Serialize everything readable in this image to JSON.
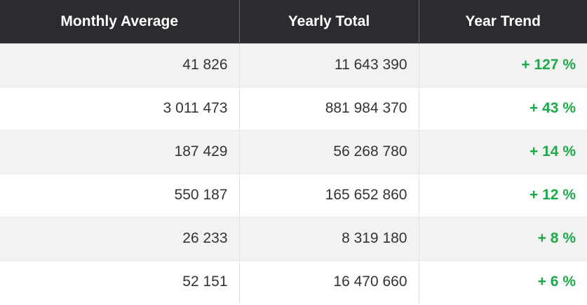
{
  "table": {
    "headers": [
      "Monthly Average",
      "Yearly Total",
      "Year Trend"
    ],
    "rows": [
      {
        "monthly_average": "41 826",
        "yearly_total": "11 643 390",
        "year_trend": "+ 127 %"
      },
      {
        "monthly_average": "3 011 473",
        "yearly_total": "881 984 370",
        "year_trend": "+ 43 %"
      },
      {
        "monthly_average": "187 429",
        "yearly_total": "56 268 780",
        "year_trend": "+ 14 %"
      },
      {
        "monthly_average": "550 187",
        "yearly_total": "165 652 860",
        "year_trend": "+ 12 %"
      },
      {
        "monthly_average": "26 233",
        "yearly_total": "8 319 180",
        "year_trend": "+ 8 %"
      },
      {
        "monthly_average": "52 151",
        "yearly_total": "16 470 660",
        "year_trend": "+ 6 %"
      }
    ]
  },
  "colors": {
    "header_bg": "#2b2c30",
    "header_text": "#ffffff",
    "row_alt_bg": "#f2f2f2",
    "trend_positive": "#1fa84a"
  }
}
